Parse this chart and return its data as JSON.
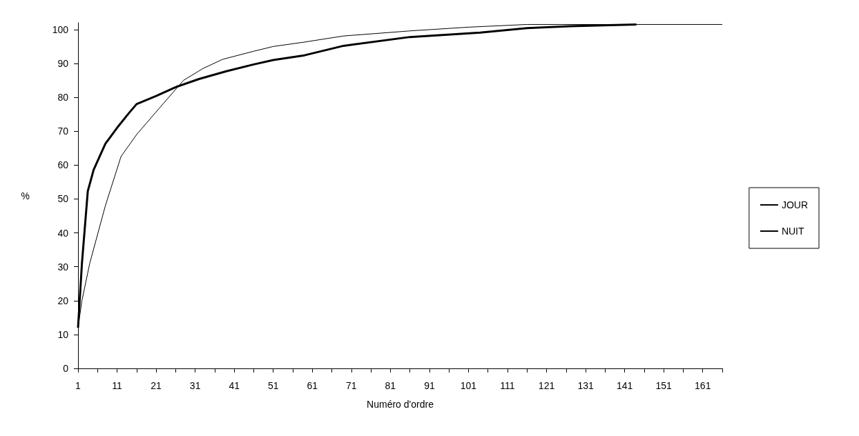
{
  "chart_data": {
    "type": "line",
    "xlabel": "Numéro d'ordre",
    "ylabel": "%",
    "xlim": [
      1,
      166
    ],
    "ylim": [
      0,
      102
    ],
    "xticks": [
      1,
      {
        "value": 6,
        "label": null
      },
      11,
      {
        "value": 16,
        "label": null
      },
      21,
      {
        "value": 26,
        "label": null
      },
      31,
      {
        "value": 36,
        "label": null
      },
      41,
      {
        "value": 46,
        "label": null
      },
      51,
      {
        "value": 56,
        "label": null
      },
      61,
      {
        "value": 66,
        "label": null
      },
      71,
      {
        "value": 76,
        "label": null
      },
      81,
      {
        "value": 86,
        "label": null
      },
      91,
      {
        "value": 96,
        "label": null
      },
      101,
      {
        "value": 106,
        "label": null
      },
      111,
      {
        "value": 116,
        "label": null
      },
      121,
      {
        "value": 126,
        "label": null
      },
      131,
      {
        "value": 136,
        "label": null
      },
      141,
      {
        "value": 146,
        "label": null
      },
      151,
      {
        "value": 156,
        "label": null
      },
      161,
      {
        "value": 166,
        "label": null
      }
    ],
    "yticks": [
      0,
      10,
      20,
      30,
      40,
      50,
      60,
      70,
      80,
      90,
      100
    ],
    "grid": false,
    "legend": "right",
    "marker": "none",
    "line_style": "solid",
    "series": [
      {
        "name": "JOUR",
        "color": "#000000",
        "x": [
          1,
          2,
          4,
          8,
          12,
          16,
          21,
          28,
          33,
          38,
          46,
          51,
          59,
          69,
          86,
          101,
          116,
          166
        ],
        "values": [
          12,
          20,
          31,
          48,
          62.5,
          69,
          75.7,
          85,
          88.5,
          91.2,
          93.6,
          95,
          96.3,
          98.1,
          99.6,
          100.7,
          101.5,
          101.5
        ]
      },
      {
        "name": "NUIT",
        "color": "#000000",
        "x": [
          1,
          2,
          3.5,
          5,
          8,
          11,
          14,
          16,
          21,
          26,
          32,
          39,
          46,
          51,
          59,
          69,
          86,
          104,
          116,
          127,
          144
        ],
        "values": [
          12,
          31,
          52.3,
          58.6,
          66.3,
          71,
          75.3,
          78,
          80.4,
          83,
          85.4,
          87.7,
          89.7,
          91,
          92.4,
          95.2,
          97.8,
          99.1,
          100.4,
          101,
          101.5
        ]
      }
    ]
  }
}
